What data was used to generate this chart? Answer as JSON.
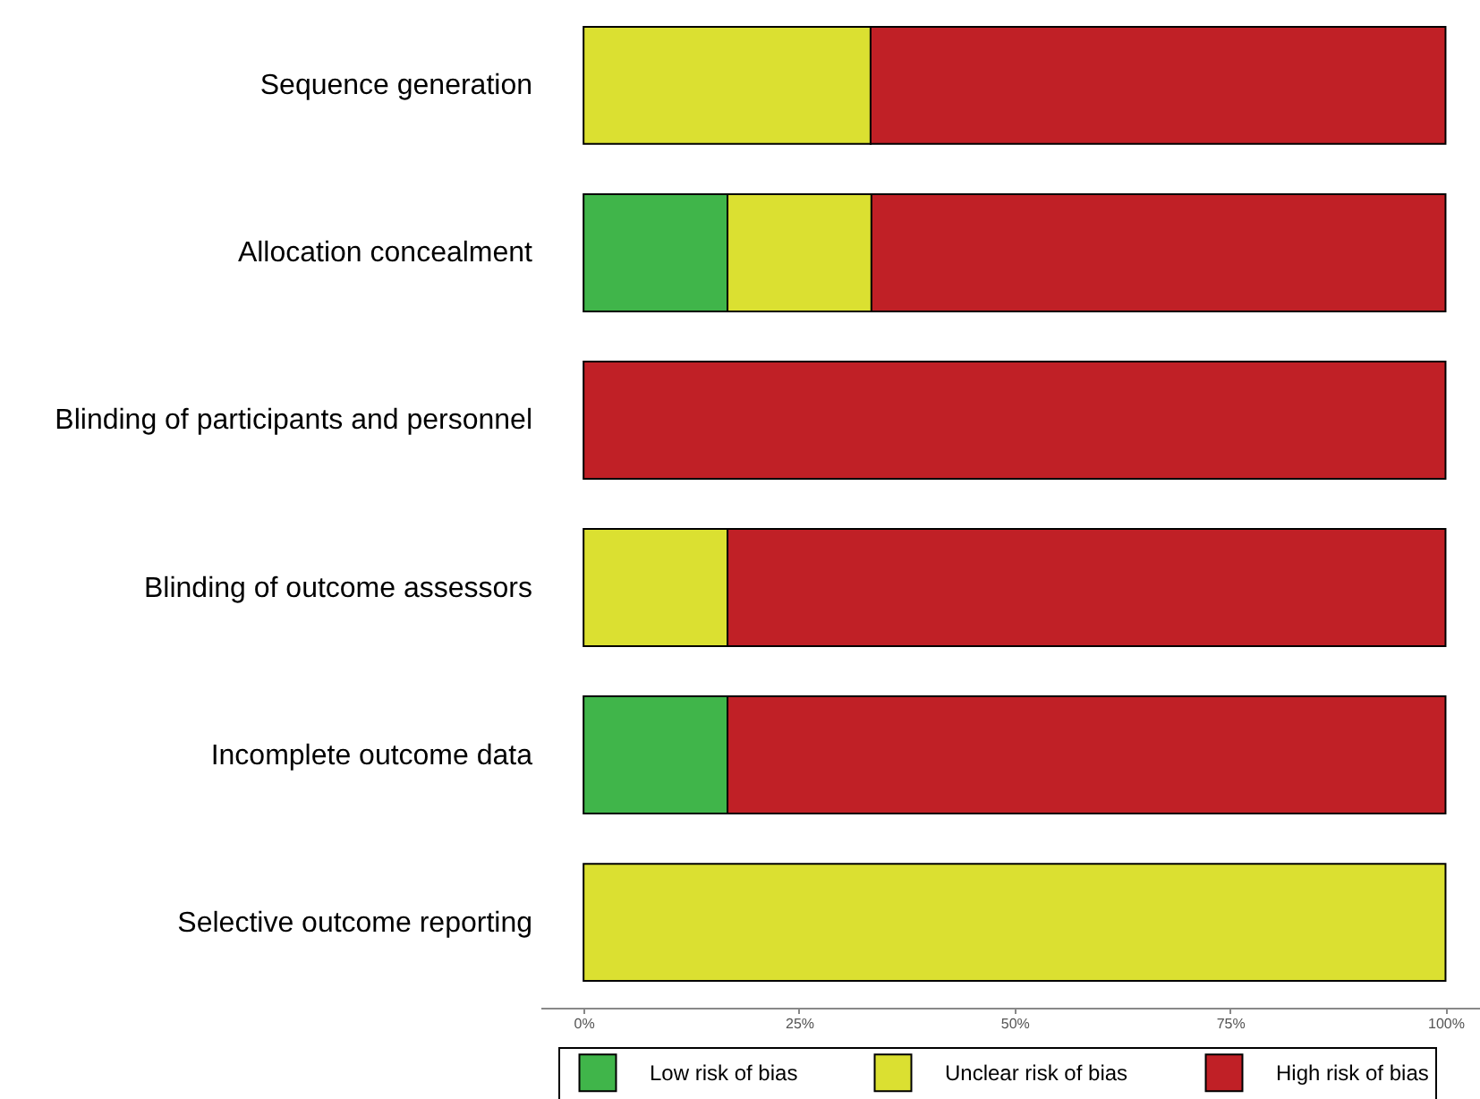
{
  "chart_data": {
    "type": "bar",
    "orientation": "horizontal",
    "stacked": true,
    "categories": [
      "Sequence generation",
      "Allocation concealment",
      "Blinding of participants and personnel",
      "Blinding of outcome assessors",
      "Incomplete outcome data",
      "Selective outcome reporting"
    ],
    "series": [
      {
        "name": "Low risk of bias",
        "color": "#40b54a",
        "values": [
          0,
          16.7,
          0,
          0,
          16.7,
          0
        ]
      },
      {
        "name": "Unclear risk of bias",
        "color": "#dbe031",
        "values": [
          33.3,
          16.7,
          0,
          16.7,
          0,
          100
        ]
      },
      {
        "name": "High risk of bias",
        "color": "#c02026",
        "values": [
          66.7,
          66.6,
          100,
          83.3,
          83.3,
          0
        ]
      }
    ],
    "xlim": [
      -5,
      104
    ],
    "xticks": [
      {
        "value": 0,
        "label": "0%"
      },
      {
        "value": 25,
        "label": "25%"
      },
      {
        "value": 50,
        "label": "50%"
      },
      {
        "value": 75,
        "label": "75%"
      },
      {
        "value": 100,
        "label": "100%"
      }
    ],
    "grid": false,
    "legend": "bottom"
  }
}
